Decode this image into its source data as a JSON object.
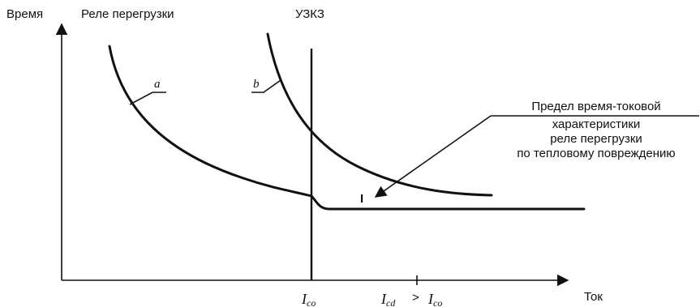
{
  "axes": {
    "y_label": "Время",
    "x_label": "Ток"
  },
  "headers": {
    "overload_relay": "Реле перегрузки",
    "scpd": "УЗКЗ"
  },
  "curve_labels": {
    "a": "a",
    "b": "b"
  },
  "limit_note": {
    "line1": "Предел время-токовой",
    "line2": "характеристики",
    "line3": "реле перегрузки",
    "line4": "по тепловому повреждению"
  },
  "intersection_marker": "I",
  "x_ticks": {
    "ico_base": "I",
    "ico_sub": "co",
    "icd_base": "I",
    "icd_sub": "cd",
    "gt": ">",
    "ico2_base": "I",
    "ico2_sub": "co"
  }
}
